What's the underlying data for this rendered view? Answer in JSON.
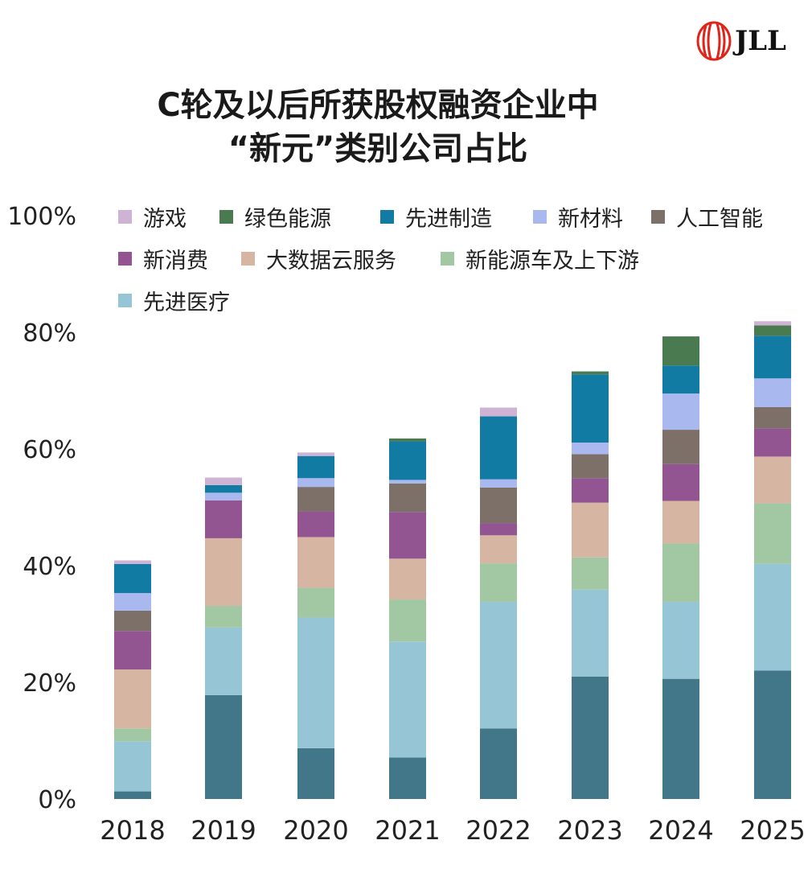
{
  "brand": "JLL",
  "chart_data": {
    "type": "bar",
    "stacked": true,
    "title": [
      "C轮及以后所获股权融资企业中",
      "“新元”类别公司占比"
    ],
    "xlabel": "",
    "ylabel": "",
    "ylim": [
      0,
      100
    ],
    "yticks": [
      "0%",
      "20%",
      "40%",
      "60%",
      "80%",
      "100%"
    ],
    "grid": false,
    "legend_position": "top",
    "categories": [
      "2018",
      "2019",
      "2020",
      "2021",
      "2022",
      "2023",
      "2024",
      "2025"
    ],
    "series": [
      {
        "name": "",
        "color": "#427789",
        "values": [
          1.3,
          17.8,
          8.7,
          7.1,
          12.1,
          21.0,
          20.6,
          22.0
        ]
      },
      {
        "name": "先进医疗",
        "color": "#96c6d6",
        "values": [
          8.6,
          11.6,
          22.4,
          19.9,
          21.7,
          14.9,
          13.2,
          18.3
        ]
      },
      {
        "name": "新能源车及上下游",
        "color": "#a2c8a3",
        "values": [
          2.2,
          3.7,
          5.1,
          7.2,
          6.6,
          5.5,
          10.0,
          10.4
        ]
      },
      {
        "name": "大数据云服务",
        "color": "#d6b6a3",
        "values": [
          10.1,
          11.6,
          8.7,
          7.0,
          4.8,
          9.4,
          7.3,
          8.0
        ]
      },
      {
        "name": "新消费",
        "color": "#925591",
        "values": [
          6.6,
          6.5,
          4.4,
          8.0,
          2.1,
          4.2,
          6.3,
          4.8
        ]
      },
      {
        "name": "人工智能",
        "color": "#7d7069",
        "values": [
          3.5,
          0,
          4.2,
          4.9,
          6.1,
          4.1,
          5.9,
          3.7
        ]
      },
      {
        "name": "新材料",
        "color": "#a9b9f0",
        "values": [
          3.0,
          1.3,
          1.5,
          0.6,
          1.4,
          2.0,
          6.2,
          4.9
        ]
      },
      {
        "name": "先进制造",
        "color": "#117ba3",
        "values": [
          5.0,
          1.3,
          3.8,
          6.6,
          10.8,
          11.7,
          4.8,
          7.3
        ]
      },
      {
        "name": "绿色能源",
        "color": "#4a7a4f",
        "values": [
          0,
          0,
          0,
          0.5,
          0,
          0.5,
          5.0,
          1.8
        ]
      },
      {
        "name": "游戏",
        "color": "#cfb3d4",
        "values": [
          0.6,
          1.3,
          0.6,
          0,
          1.5,
          0,
          0,
          0.7
        ]
      }
    ],
    "legend_order": [
      "游戏",
      "绿色能源",
      "先进制造",
      "新材料",
      "人工智能",
      "新消费",
      "大数据云服务",
      "新能源车及上下游",
      "先进医疗"
    ]
  }
}
